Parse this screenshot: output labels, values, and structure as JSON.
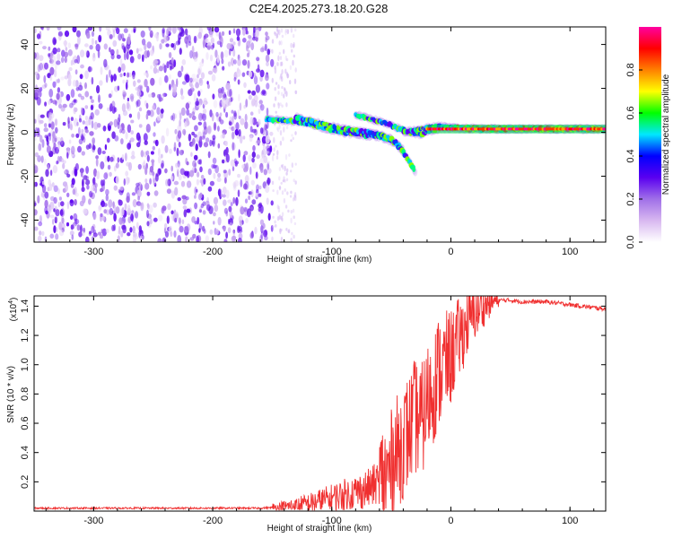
{
  "title": "C2E4.2025.273.18.20.G28",
  "chart_data": [
    {
      "type": "heatmap",
      "name": "spectrogram",
      "xlabel": "Height of straight line (km)",
      "ylabel": "Frequency (Hz)",
      "xlim": [
        -350,
        130
      ],
      "ylim": [
        -50,
        48
      ],
      "xticks": [
        -300,
        -200,
        -100,
        0,
        100
      ],
      "yticks": [
        -40,
        -20,
        0,
        20,
        40
      ],
      "noise_region_x": [
        -350,
        -150
      ],
      "noise_fringe_x": [
        -150,
        -130
      ],
      "signal_tracks": [
        {
          "x": [
            -155,
            -130,
            -120,
            -100,
            -80,
            -60,
            -45,
            -40
          ],
          "y": [
            6,
            5,
            4,
            1,
            -1,
            -2,
            -5,
            -8
          ]
        },
        {
          "x": [
            -130,
            -110,
            -95,
            -85,
            -70,
            -60,
            -50,
            -45,
            -40,
            -35,
            -30
          ],
          "y": [
            7,
            4,
            2,
            1,
            0,
            -1,
            -3,
            -6,
            -9,
            -13,
            -18
          ]
        },
        {
          "x": [
            -80,
            -60,
            -45,
            -35,
            -25,
            -15,
            -5,
            10,
            40,
            80,
            130
          ],
          "y": [
            8,
            5,
            2,
            0,
            -1,
            1,
            2,
            2,
            1.5,
            1.5,
            1.5
          ]
        },
        {
          "x": [
            -40,
            -30,
            -20,
            -10,
            0,
            20,
            50,
            90,
            130
          ],
          "y": [
            0,
            1,
            2,
            3,
            2,
            1.5,
            1.5,
            1.5,
            1.5
          ]
        }
      ]
    },
    {
      "type": "colorbar",
      "name": "amplitude-scale",
      "label": "Normalized spectral amplitude",
      "range": [
        0.0,
        1.0
      ],
      "ticks": [
        "0.0",
        "0.2",
        "0.4",
        "0.6",
        "0.8"
      ],
      "colors": [
        "#ffffff",
        "#d8b8f0",
        "#a070e8",
        "#5a00f0",
        "#0000ff",
        "#00e8ff",
        "#00ff00",
        "#ffff00",
        "#ff8000",
        "#ff0000",
        "#ff00a0"
      ]
    },
    {
      "type": "line",
      "name": "snr",
      "xlabel": "Height of straight line (km)",
      "ylabel": "SNR (10 * v/v)",
      "multiplier_label": "(x10",
      "multiplier_exp": "4",
      "xlim": [
        -350,
        130
      ],
      "ylim": [
        0,
        1.47
      ],
      "xticks": [
        -300,
        -200,
        -100,
        0,
        100
      ],
      "yticks": [
        0.2,
        0.4,
        0.6,
        0.8,
        1.0,
        1.2,
        1.4
      ],
      "series": [
        {
          "name": "SNR",
          "color": "#f03030",
          "x": [
            -350,
            -300,
            -250,
            -200,
            -170,
            -160,
            -150,
            -140,
            -130,
            -120,
            -110,
            -100,
            -90,
            -80,
            -70,
            -60,
            -55,
            -50,
            -45,
            -40,
            -35,
            -30,
            -25,
            -20,
            -15,
            -10,
            -5,
            0,
            5,
            10,
            15,
            20,
            25,
            30,
            35,
            40,
            50,
            60,
            70,
            80,
            90,
            100,
            110,
            120,
            130
          ],
          "y": [
            0.02,
            0.02,
            0.02,
            0.02,
            0.02,
            0.02,
            0.025,
            0.03,
            0.04,
            0.05,
            0.07,
            0.09,
            0.11,
            0.13,
            0.15,
            0.2,
            0.22,
            0.3,
            0.4,
            0.48,
            0.55,
            0.65,
            0.6,
            0.75,
            0.85,
            0.95,
            1.0,
            1.05,
            1.15,
            1.22,
            1.3,
            1.35,
            1.38,
            1.41,
            1.43,
            1.44,
            1.44,
            1.43,
            1.43,
            1.43,
            1.42,
            1.41,
            1.4,
            1.39,
            1.38
          ]
        }
      ]
    }
  ]
}
